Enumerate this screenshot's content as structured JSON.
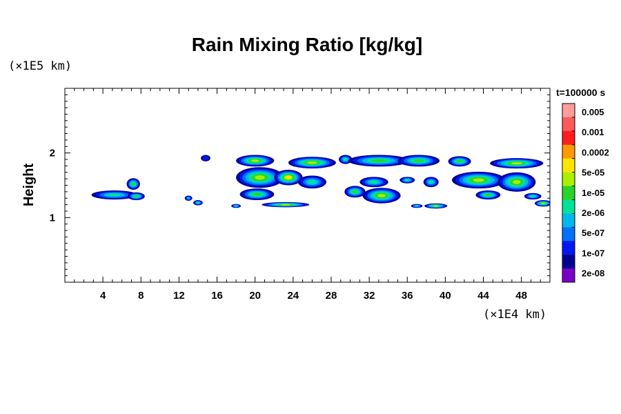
{
  "chart_data": {
    "type": "heatmap",
    "title": "Rain Mixing Ratio [kg/kg]",
    "ylabel": "Height",
    "xunit": "(×1E4 km)",
    "yunit": "(×1E5 km)",
    "time_label": "t=100000 s",
    "x_range": [
      0,
      51
    ],
    "y_range": [
      0,
      3
    ],
    "x_ticks": [
      4,
      8,
      12,
      16,
      20,
      24,
      28,
      32,
      36,
      40,
      44,
      48
    ],
    "x_tick_labels": [
      "4",
      "8",
      "12",
      "16",
      "20",
      "24",
      "28",
      "32",
      "36",
      "40",
      "44",
      "48"
    ],
    "y_ticks": [
      1,
      2
    ],
    "y_tick_labels": [
      "1",
      "2"
    ],
    "colorbar": {
      "labels": [
        "0.005",
        "0.001",
        "0.0002",
        "5e-05",
        "1e-05",
        "2e-06",
        "5e-07",
        "1e-07",
        "2e-08"
      ],
      "colors": [
        "#ff9c9c",
        "#ff5a5a",
        "#ff1e1e",
        "#ff9a00",
        "#ffe600",
        "#aaf000",
        "#28d428",
        "#00e29a",
        "#00b9ea",
        "#0070ff",
        "#0018f0",
        "#000090",
        "#7a00c8"
      ]
    },
    "cells": [
      {
        "x": 5.2,
        "y": 1.35,
        "rx": 2.4,
        "ry": 0.07,
        "level": 7
      },
      {
        "x": 7.2,
        "y": 1.52,
        "rx": 0.7,
        "ry": 0.09,
        "level": 6
      },
      {
        "x": 7.5,
        "y": 1.33,
        "rx": 0.9,
        "ry": 0.06,
        "level": 6
      },
      {
        "x": 13.0,
        "y": 1.3,
        "rx": 0.4,
        "ry": 0.04,
        "level": 8
      },
      {
        "x": 14.0,
        "y": 1.23,
        "rx": 0.5,
        "ry": 0.04,
        "level": 7
      },
      {
        "x": 14.8,
        "y": 1.92,
        "rx": 0.5,
        "ry": 0.05,
        "level": 10
      },
      {
        "x": 18.0,
        "y": 1.18,
        "rx": 0.5,
        "ry": 0.03,
        "level": 7
      },
      {
        "x": 20.0,
        "y": 1.88,
        "rx": 2.0,
        "ry": 0.09,
        "level": 5
      },
      {
        "x": 20.5,
        "y": 1.62,
        "rx": 2.5,
        "ry": 0.16,
        "level": 5
      },
      {
        "x": 23.5,
        "y": 1.62,
        "rx": 1.5,
        "ry": 0.12,
        "level": 4
      },
      {
        "x": 20.2,
        "y": 1.36,
        "rx": 1.8,
        "ry": 0.09,
        "level": 6
      },
      {
        "x": 23.2,
        "y": 1.2,
        "rx": 2.5,
        "ry": 0.04,
        "level": 5
      },
      {
        "x": 26.0,
        "y": 1.85,
        "rx": 2.5,
        "ry": 0.09,
        "level": 5
      },
      {
        "x": 26.0,
        "y": 1.55,
        "rx": 1.5,
        "ry": 0.1,
        "level": 7
      },
      {
        "x": 29.5,
        "y": 1.9,
        "rx": 0.7,
        "ry": 0.07,
        "level": 7
      },
      {
        "x": 30.5,
        "y": 1.4,
        "rx": 1.1,
        "ry": 0.09,
        "level": 6
      },
      {
        "x": 33.0,
        "y": 1.88,
        "rx": 3.2,
        "ry": 0.09,
        "level": 6
      },
      {
        "x": 32.5,
        "y": 1.55,
        "rx": 1.5,
        "ry": 0.08,
        "level": 7
      },
      {
        "x": 33.3,
        "y": 1.34,
        "rx": 2.0,
        "ry": 0.12,
        "level": 5
      },
      {
        "x": 36.0,
        "y": 1.58,
        "rx": 0.8,
        "ry": 0.05,
        "level": 7
      },
      {
        "x": 37.2,
        "y": 1.88,
        "rx": 2.2,
        "ry": 0.09,
        "level": 6
      },
      {
        "x": 37.0,
        "y": 1.18,
        "rx": 0.6,
        "ry": 0.03,
        "level": 7
      },
      {
        "x": 38.5,
        "y": 1.55,
        "rx": 0.8,
        "ry": 0.08,
        "level": 7
      },
      {
        "x": 39.0,
        "y": 1.18,
        "rx": 1.2,
        "ry": 0.04,
        "level": 5
      },
      {
        "x": 41.5,
        "y": 1.87,
        "rx": 1.2,
        "ry": 0.08,
        "level": 6
      },
      {
        "x": 43.5,
        "y": 1.58,
        "rx": 2.8,
        "ry": 0.13,
        "level": 5
      },
      {
        "x": 44.5,
        "y": 1.35,
        "rx": 1.3,
        "ry": 0.07,
        "level": 6
      },
      {
        "x": 47.5,
        "y": 1.84,
        "rx": 2.8,
        "ry": 0.08,
        "level": 5
      },
      {
        "x": 47.5,
        "y": 1.55,
        "rx": 2.0,
        "ry": 0.15,
        "level": 5
      },
      {
        "x": 49.2,
        "y": 1.33,
        "rx": 0.9,
        "ry": 0.05,
        "level": 7
      },
      {
        "x": 50.3,
        "y": 1.22,
        "rx": 0.9,
        "ry": 0.05,
        "level": 5
      }
    ]
  }
}
